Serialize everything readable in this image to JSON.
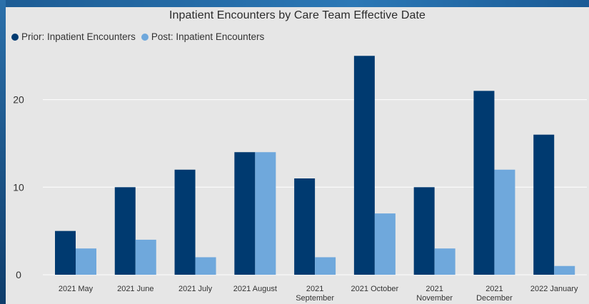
{
  "chart_data": {
    "type": "bar",
    "title": "Inpatient Encounters by Care Team Effective Date",
    "xlabel": "",
    "ylabel": "",
    "categories": [
      [
        "2021 May"
      ],
      [
        "2021 June"
      ],
      [
        "2021 July"
      ],
      [
        "2021 August"
      ],
      [
        "2021",
        "September"
      ],
      [
        "2021 October"
      ],
      [
        "2021",
        "November"
      ],
      [
        "2021",
        "December"
      ],
      [
        "2022 January"
      ]
    ],
    "series": [
      {
        "name": "Prior: Inpatient Encounters",
        "color": "#003a70",
        "values": [
          5,
          10,
          12,
          14,
          11,
          25,
          10,
          21,
          16
        ]
      },
      {
        "name": "Post: Inpatient Encounters",
        "color": "#6fa8dc",
        "values": [
          3,
          4,
          2,
          14,
          2,
          7,
          3,
          12,
          1
        ]
      }
    ],
    "yticks": [
      0,
      10,
      20
    ],
    "ylim": [
      0,
      26
    ],
    "grid": true,
    "legend_position": "top-left"
  },
  "colors": {
    "panel_background": "#e6e6e6",
    "gridline": "#ffffff",
    "frame": "#1a5a95"
  }
}
